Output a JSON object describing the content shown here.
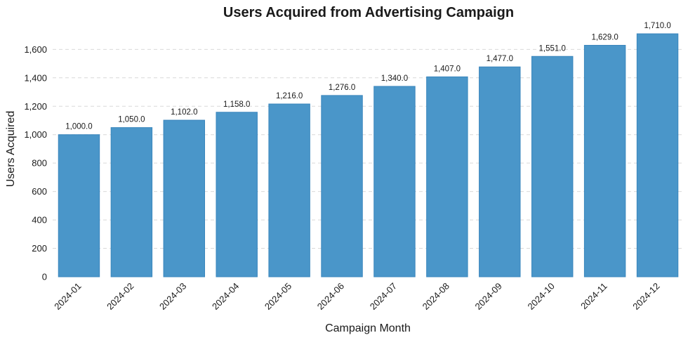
{
  "chart_data": {
    "type": "bar",
    "title": "Users Acquired from Advertising Campaign",
    "xlabel": "Campaign Month",
    "ylabel": "Users Acquired",
    "categories": [
      "2024-01",
      "2024-02",
      "2024-03",
      "2024-04",
      "2024-05",
      "2024-06",
      "2024-07",
      "2024-08",
      "2024-09",
      "2024-10",
      "2024-11",
      "2024-12"
    ],
    "values": [
      1000.0,
      1050.0,
      1102.0,
      1158.0,
      1216.0,
      1276.0,
      1340.0,
      1407.0,
      1477.0,
      1551.0,
      1629.0,
      1710.0
    ],
    "data_labels": [
      "1,000.0",
      "1,050.0",
      "1,102.0",
      "1,158.0",
      "1,216.0",
      "1,276.0",
      "1,340.0",
      "1,407.0",
      "1,477.0",
      "1,551.0",
      "1,629.0",
      "1,710.0"
    ],
    "yticks": [
      0,
      200,
      400,
      600,
      800,
      1000,
      1200,
      1400,
      1600
    ],
    "ytick_labels": [
      "0",
      "200",
      "400",
      "600",
      "800",
      "1,000",
      "1,200",
      "1,400",
      "1,600"
    ],
    "ylim": [
      0,
      1750
    ],
    "grid": "horizontal dashed",
    "bar_color": "#4a96c9"
  }
}
